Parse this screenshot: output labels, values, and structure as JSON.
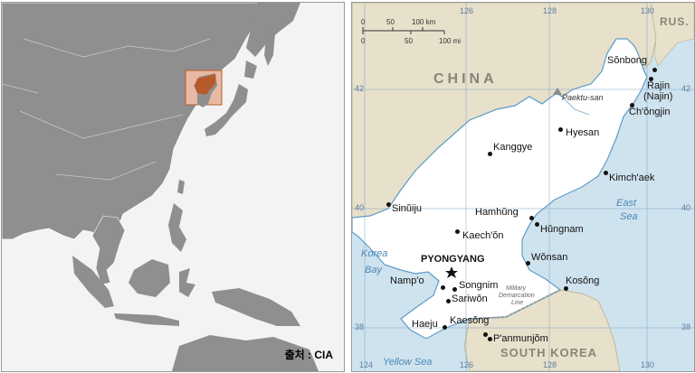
{
  "left_map": {
    "credit": "출처 : CIA",
    "colors": {
      "ocean": "#f3f3f3",
      "land": "#8f8f8f",
      "highlight": "#b65a2a",
      "box": "#e9b9a3"
    }
  },
  "right_map": {
    "countries": {
      "china": "CHINA",
      "russia": "RUS.",
      "south_korea": "SOUTH KOREA"
    },
    "seas": {
      "east_sea_1": "East",
      "east_sea_2": "Sea",
      "korea_bay_1": "Korea",
      "korea_bay_2": "Bay",
      "yellow_sea": "Yellow Sea"
    },
    "capital": "PYONGYANG",
    "cities": {
      "sonbong": "Sŏnbong",
      "rajin_1": "Rajin",
      "rajin_2": "(Najin)",
      "chongjin": "Ch'ŏngjin",
      "hyesan": "Hyesan",
      "kanggye": "Kanggye",
      "kimchaek": "Kimch'aek",
      "sinuiju": "Sinŭiju",
      "hamhung": "Hamhŭng",
      "hungnam": "Hŭngnam",
      "kaechon": "Kaech'ŏn",
      "wonsan": "Wŏnsan",
      "nampo": "Namp'o",
      "songnim": "Songnim",
      "sariwon": "Sariwŏn",
      "kosong": "Kosŏng",
      "haeju": "Haeju",
      "kaesong": "Kaesŏng",
      "panmunjom": "P'anmunjŏm"
    },
    "peak": "Paektu-san",
    "dmz": {
      "line1": "Military",
      "line2": "Demarcation",
      "line3": "Line"
    },
    "scale": {
      "km0": "0",
      "km50": "50",
      "km100": "100 km",
      "mi0": "0",
      "mi50": "50",
      "mi100": "100 mi"
    },
    "longitude_ticks": {
      "t124": "124",
      "t126": "126",
      "t128": "128",
      "t130": "130"
    },
    "latitude_ticks": {
      "t42": "42",
      "t40": "40",
      "t38": "38"
    },
    "colors": {
      "sea": "#cfe3ee",
      "north_korea": "#ffffff",
      "neighbors": "#e7e0cb",
      "grid": "#7aa3c4",
      "coast": "#5d9cc7"
    }
  }
}
